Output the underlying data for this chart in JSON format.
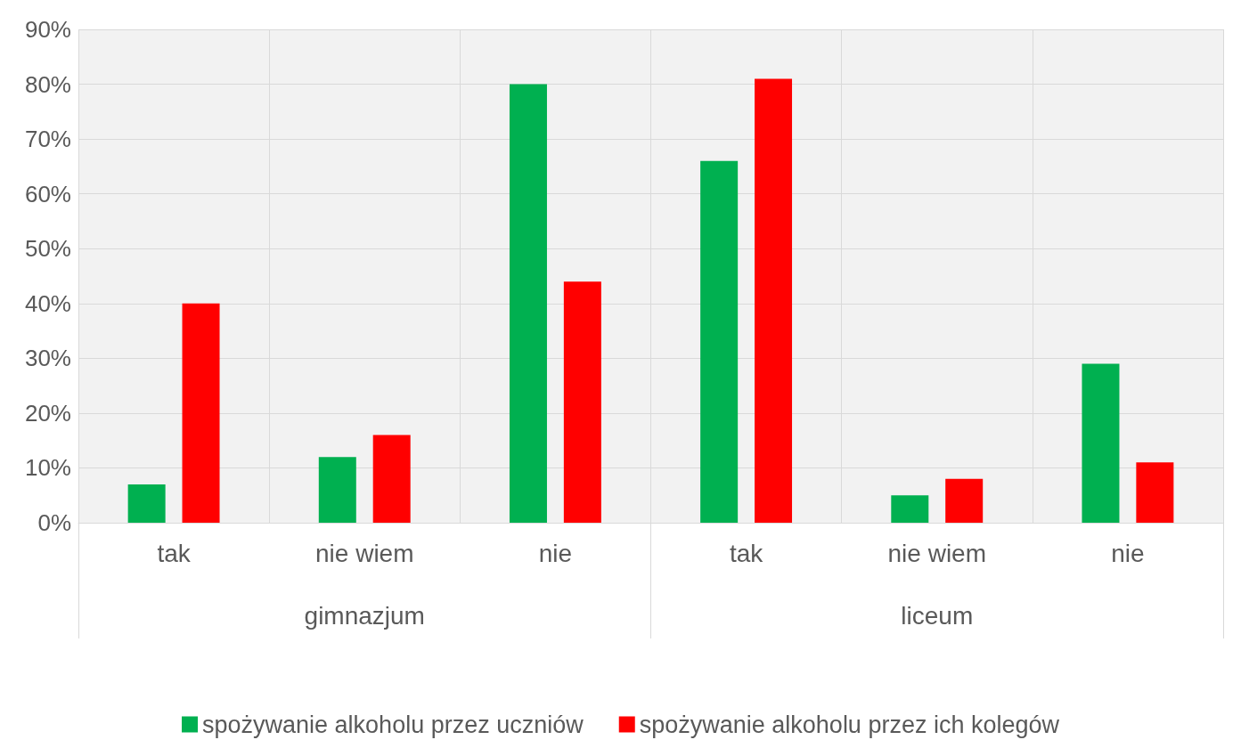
{
  "chart_data": {
    "type": "bar",
    "categories": [
      "tak",
      "nie wiem",
      "nie",
      "tak",
      "nie wiem",
      "nie"
    ],
    "annotations": [
      "gimnazjum",
      "liceum"
    ],
    "series": [
      {
        "name": "spożywanie alkoholu przez uczniów",
        "color": "#00b050",
        "values": [
          7,
          12,
          80,
          66,
          5,
          29
        ]
      },
      {
        "name": "spożywanie alkoholu przez ich kolegów",
        "color": "#ff0000",
        "values": [
          40,
          16,
          44,
          81,
          8,
          11
        ]
      }
    ],
    "ylim": [
      0,
      90
    ],
    "yticks": [
      {
        "value": 0,
        "label": "0%"
      },
      {
        "value": 10,
        "label": "10%"
      },
      {
        "value": 20,
        "label": "20%"
      },
      {
        "value": 30,
        "label": "30%"
      },
      {
        "value": 40,
        "label": "40%"
      },
      {
        "value": 50,
        "label": "50%"
      },
      {
        "value": 60,
        "label": "60%"
      },
      {
        "value": 70,
        "label": "70%"
      },
      {
        "value": 80,
        "label": "80%"
      },
      {
        "value": 90,
        "label": "90%"
      }
    ],
    "grid": true,
    "legend": "bottom"
  }
}
